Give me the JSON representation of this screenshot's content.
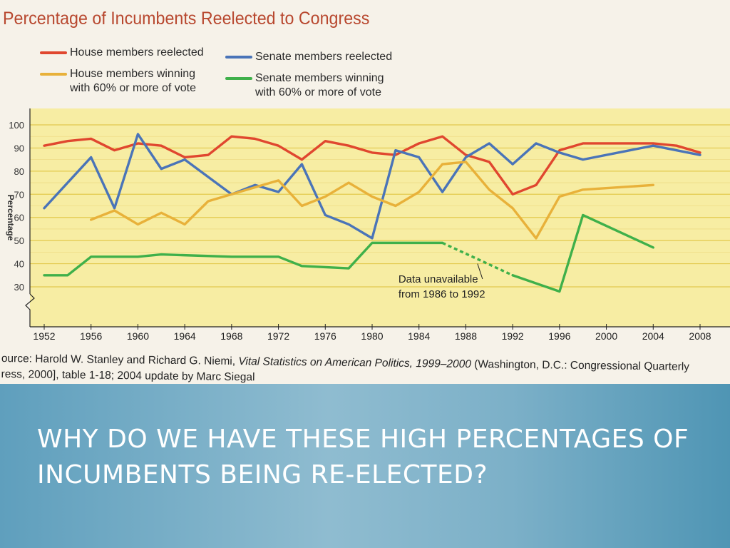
{
  "chart_data": {
    "type": "line",
    "title": "Percentage of Incumbents Reelected to Congress",
    "ylabel": "Percentage",
    "xlabel": "",
    "xlim": [
      1950,
      2010
    ],
    "ylim": [
      22,
      102
    ],
    "y_ticks": [
      100,
      90,
      80,
      70,
      60,
      50,
      40,
      30
    ],
    "x_ticks": [
      1952,
      1956,
      1960,
      1964,
      1968,
      1972,
      1976,
      1980,
      1984,
      1988,
      1992,
      1996,
      2000,
      2004,
      2008
    ],
    "axis_break": true,
    "grid": "horizontal",
    "legend_position": "top-left",
    "series": [
      {
        "name": "House members reelected",
        "color": "#e0472f",
        "x": [
          1952,
          1954,
          1956,
          1958,
          1960,
          1962,
          1964,
          1966,
          1968,
          1970,
          1972,
          1974,
          1976,
          1978,
          1980,
          1982,
          1984,
          1986,
          1988,
          1990,
          1992,
          1994,
          1996,
          1998,
          2000,
          2002,
          2004,
          2006,
          2008
        ],
        "y": [
          91,
          93,
          94,
          89,
          92,
          91,
          86,
          87,
          95,
          94,
          91,
          85,
          93,
          91,
          88,
          87,
          92,
          95,
          87,
          84,
          70,
          74,
          89,
          92,
          92,
          92,
          92,
          91,
          88
        ]
      },
      {
        "name": "Senate members reelected",
        "color": "#4a74b8",
        "x": [
          1952,
          1956,
          1958,
          1960,
          1962,
          1964,
          1968,
          1970,
          1972,
          1974,
          1976,
          1978,
          1980,
          1982,
          1984,
          1986,
          1988,
          1990,
          1992,
          1994,
          1996,
          1998,
          2004,
          2008
        ],
        "y": [
          64,
          86,
          64,
          96,
          81,
          85,
          70,
          74,
          71,
          83,
          61,
          57,
          51,
          89,
          86,
          71,
          86,
          92,
          83,
          92,
          88,
          85,
          91,
          87
        ]
      },
      {
        "name": "House members winning with 60% or more of vote",
        "color": "#e8b13a",
        "x": [
          1956,
          1958,
          1960,
          1962,
          1964,
          1966,
          1968,
          1970,
          1972,
          1974,
          1976,
          1978,
          1980,
          1982,
          1984,
          1986,
          1988,
          1990,
          1992,
          1994,
          1996,
          1998,
          2004
        ],
        "y": [
          59,
          63,
          57,
          62,
          57,
          67,
          70,
          73,
          76,
          65,
          69,
          75,
          69,
          65,
          71,
          83,
          84,
          72,
          64,
          51,
          69,
          72,
          74
        ]
      },
      {
        "name": "Senate members winning with 60% or more of vote",
        "color": "#3fb04a",
        "x": [
          1952,
          1954,
          1956,
          1960,
          1962,
          1968,
          1972,
          1974,
          1978,
          1980,
          1986,
          1992,
          1996,
          1998,
          2004
        ],
        "y": [
          35,
          35,
          43,
          43,
          44,
          43,
          43,
          39,
          38,
          49,
          49,
          35,
          28,
          61,
          47
        ],
        "dashed_range": [
          1986,
          1992
        ]
      }
    ],
    "annotations": [
      {
        "text_lines": [
          "Data unavailable",
          "from 1986 to 1992"
        ],
        "x": 1982,
        "y": 30
      }
    ]
  },
  "source_note": {
    "prefix": "ource: Harold W. Stanley and Richard G. Niemi, ",
    "work_title": "Vital Statistics on American Politics, 1999–2000",
    "suffix": " (Washington, D.C.: Congressional Quarterly",
    "line2": "ress, 2000], table 1-18; 2004 update by Marc Siegal"
  },
  "slide": {
    "question": "WHY DO WE HAVE THESE HIGH PERCENTAGES OF INCUMBENTS BEING RE-ELECTED?"
  }
}
